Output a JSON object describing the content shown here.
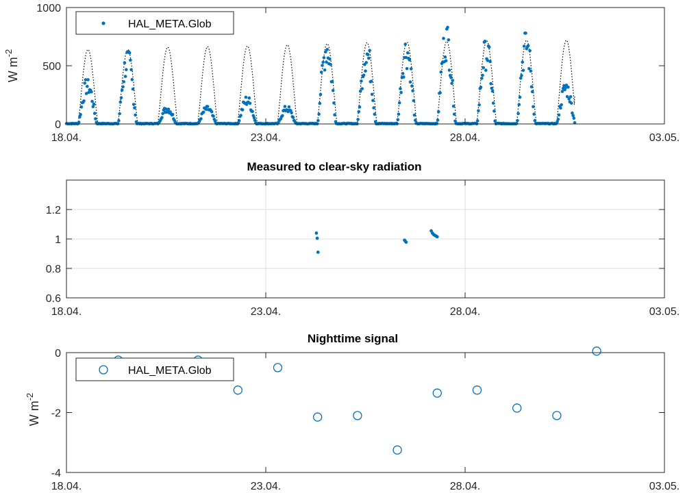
{
  "chart_data": [
    {
      "type": "scatter",
      "title": "",
      "xlabel": "",
      "ylabel": "W m",
      "ylabel_exponent": "-2",
      "xlim": [
        0,
        15
      ],
      "ylim": [
        0,
        1000
      ],
      "x_ticks": [
        "18.04.",
        "23.04.",
        "28.04.",
        "03.05."
      ],
      "y_ticks": [
        "0",
        "500",
        "1000"
      ],
      "grid": false,
      "legend": "top-left",
      "series": [
        {
          "name": "HAL_META.Glob",
          "style": "dots",
          "color": "#0072bd",
          "days": [
            {
              "start": 0.3,
              "end": 0.76,
              "peak": 380
            },
            {
              "start": 1.3,
              "end": 1.76,
              "peak": 620
            },
            {
              "start": 2.3,
              "end": 2.76,
              "peak": 150
            },
            {
              "start": 3.3,
              "end": 3.76,
              "peak": 150
            },
            {
              "start": 4.3,
              "end": 4.76,
              "peak": 230
            },
            {
              "start": 5.3,
              "end": 5.76,
              "peak": 150
            },
            {
              "start": 6.3,
              "end": 6.76,
              "peak": 740
            },
            {
              "start": 7.3,
              "end": 7.76,
              "peak": 690
            },
            {
              "start": 8.3,
              "end": 8.76,
              "peak": 720
            },
            {
              "start": 9.3,
              "end": 9.76,
              "peak": 830
            },
            {
              "start": 10.3,
              "end": 10.76,
              "peak": 710
            },
            {
              "start": 11.3,
              "end": 11.76,
              "peak": 780
            },
            {
              "start": 12.3,
              "end": 12.76,
              "peak": 350
            }
          ],
          "last_x": 12.75
        },
        {
          "name": "",
          "style": "dotted-line",
          "color": "#000000",
          "clear_sky_peaks": [
            640,
            640,
            660,
            665,
            670,
            680,
            690,
            700,
            705,
            710,
            715,
            720,
            720
          ],
          "last_x": 12.75,
          "last_y": 250
        }
      ]
    },
    {
      "type": "scatter",
      "title": "Measured to clear-sky radiation",
      "xlabel": "",
      "ylabel": "",
      "xlim": [
        0,
        15
      ],
      "ylim": [
        0.6,
        1.4
      ],
      "x_ticks": [
        "18.04.",
        "23.04.",
        "28.04.",
        "03.05."
      ],
      "y_ticks": [
        "0.6",
        "0.8",
        "1",
        "1.2"
      ],
      "grid": true,
      "series": [
        {
          "name": "",
          "color": "#0072bd",
          "points": [
            [
              6.27,
              1.04
            ],
            [
              6.29,
              1.005
            ],
            [
              6.31,
              0.91
            ],
            [
              8.48,
              0.992
            ],
            [
              8.5,
              0.985
            ],
            [
              8.52,
              0.978
            ],
            [
              9.15,
              1.055
            ],
            [
              9.18,
              1.04
            ],
            [
              9.21,
              1.03
            ],
            [
              9.24,
              1.025
            ],
            [
              9.27,
              1.02
            ],
            [
              9.3,
              1.015
            ]
          ]
        }
      ]
    },
    {
      "type": "scatter",
      "title": "Nighttime signal",
      "xlabel": "",
      "ylabel": "W m",
      "ylabel_exponent": "-2",
      "xlim": [
        0,
        15
      ],
      "ylim": [
        -4,
        0
      ],
      "x_ticks": [
        "18.04.",
        "23.04.",
        "28.04.",
        "03.05."
      ],
      "y_ticks": [
        "-4",
        "-2",
        "0"
      ],
      "grid": false,
      "legend": "top-left",
      "series": [
        {
          "name": "HAL_META.Glob",
          "marker": "circle",
          "color": "#0072bd",
          "x": [
            1.3,
            3.3,
            4.3,
            5.3,
            6.3,
            7.3,
            8.3,
            9.3,
            10.3,
            11.3,
            12.3,
            13.3
          ],
          "y": [
            -0.25,
            -0.25,
            -1.25,
            -0.5,
            -2.15,
            -2.1,
            -3.25,
            -1.35,
            -1.25,
            -1.85,
            -2.1,
            0.05
          ]
        }
      ]
    }
  ]
}
